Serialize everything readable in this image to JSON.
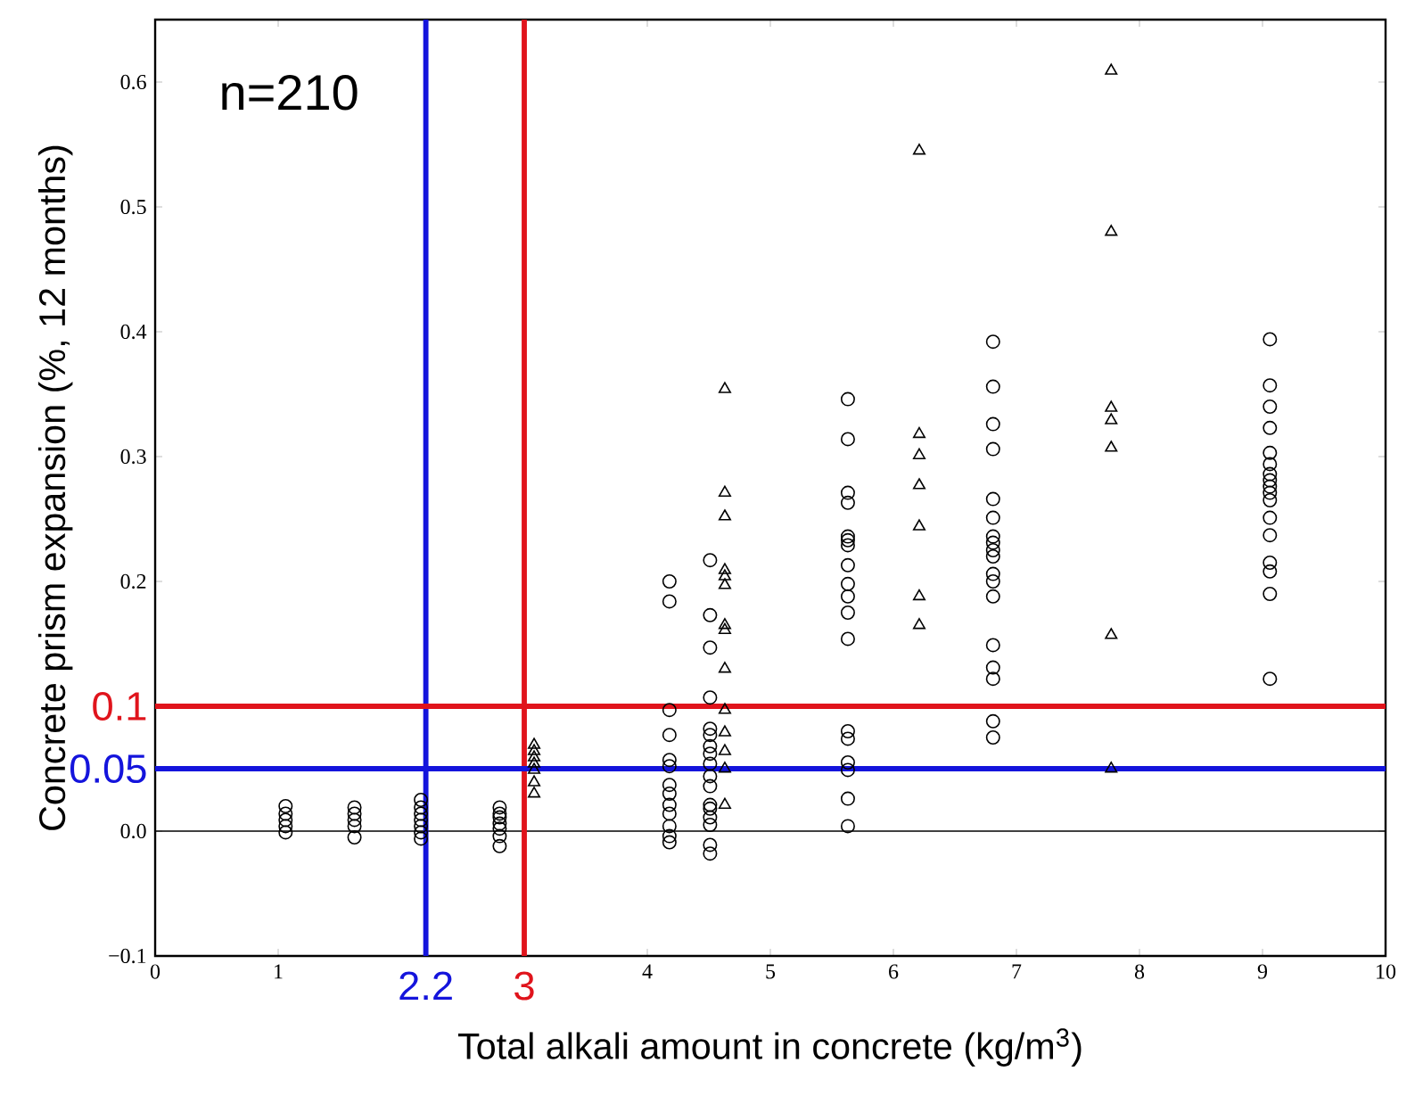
{
  "chart_data": {
    "type": "scatter",
    "xlabel": "Total alkali amount in concrete (kg/m$^{3}$)",
    "ylabel": "Concrete prism expansion (%, 12 months)",
    "annotations": [
      "n=210"
    ],
    "xlim": [
      0,
      10
    ],
    "ylim": [
      -0.1,
      0.65
    ],
    "xticks": [
      0,
      1,
      4,
      5,
      6,
      7,
      8,
      9,
      10
    ],
    "yticks": [
      {
        "value": -0.1,
        "label": "−0.1"
      },
      {
        "value": 0,
        "label": "0.0"
      },
      0.2,
      0.3,
      0.4,
      0.5,
      0.6
    ],
    "ref_lines": [
      {
        "axis": "y",
        "value": 0,
        "color": "#000000"
      },
      {
        "axis": "x",
        "value": 2.2,
        "label": "2.2",
        "color": "#1414dc"
      },
      {
        "axis": "x",
        "value": 3,
        "label": "3",
        "color": "#e0141c"
      },
      {
        "axis": "y",
        "value": 0.1,
        "label": "0.1",
        "color": "#e0141c"
      },
      {
        "axis": "y",
        "value": 0.05,
        "label": "0.05",
        "color": "#1414dc"
      }
    ],
    "series": [
      {
        "color": "#000000",
        "marker": "circle",
        "x": [
          1.06,
          1.06,
          1.06,
          1.06,
          1.06,
          1.62,
          1.62,
          1.62,
          1.62,
          1.62,
          2.16,
          2.16,
          2.16,
          2.16,
          2.16,
          2.16,
          2.16,
          2.8,
          2.8,
          2.8,
          2.8,
          2.8,
          2.8,
          2.8,
          4.18,
          4.18,
          4.18,
          4.18,
          4.18,
          4.18,
          4.18,
          4.18,
          4.18,
          4.18,
          4.18,
          4.18,
          4.18,
          4.51,
          4.51,
          4.51,
          4.51,
          4.51,
          4.51,
          4.51,
          4.51,
          4.51,
          4.51,
          4.51,
          4.51,
          4.51,
          4.51,
          4.51,
          4.51,
          4.51,
          5.63,
          5.63,
          5.63,
          5.63,
          5.63,
          5.63,
          5.63,
          5.63,
          5.63,
          5.63,
          5.63,
          5.63,
          5.63,
          5.63,
          5.63,
          5.63,
          5.63,
          5.63,
          6.81,
          6.81,
          6.81,
          6.81,
          6.81,
          6.81,
          6.81,
          6.81,
          6.81,
          6.81,
          6.81,
          6.81,
          6.81,
          6.81,
          6.81,
          6.81,
          6.81,
          6.81,
          9.06,
          9.06,
          9.06,
          9.06,
          9.06,
          9.06,
          9.06,
          9.06,
          9.06,
          9.06,
          9.06,
          9.06,
          9.06,
          9.06,
          9.06,
          9.06,
          9.06
        ],
        "values": [
          0.02,
          0.014,
          0.009,
          0.004,
          -0.001,
          0.019,
          0.014,
          0.009,
          0.004,
          -0.005,
          0.025,
          0.019,
          0.014,
          0.009,
          0.004,
          -0.001,
          -0.006,
          0.019,
          0.014,
          0.011,
          0.006,
          0.002,
          -0.004,
          -0.012,
          0.2,
          0.184,
          0.097,
          0.077,
          0.057,
          0.052,
          0.037,
          0.03,
          0.021,
          0.014,
          0.004,
          -0.004,
          -0.009,
          0.217,
          0.173,
          0.147,
          0.107,
          0.082,
          0.077,
          0.068,
          0.062,
          0.054,
          0.044,
          0.036,
          0.021,
          0.018,
          0.011,
          0.005,
          -0.011,
          -0.018,
          0.346,
          0.314,
          0.271,
          0.263,
          0.236,
          0.233,
          0.229,
          0.213,
          0.198,
          0.188,
          0.175,
          0.154,
          0.08,
          0.074,
          0.055,
          0.049,
          0.026,
          0.004,
          0.392,
          0.356,
          0.326,
          0.306,
          0.266,
          0.251,
          0.236,
          0.231,
          0.225,
          0.22,
          0.206,
          0.2,
          0.188,
          0.149,
          0.131,
          0.122,
          0.088,
          0.075,
          0.394,
          0.357,
          0.34,
          0.323,
          0.303,
          0.294,
          0.286,
          0.281,
          0.276,
          0.271,
          0.265,
          0.251,
          0.237,
          0.215,
          0.208,
          0.19,
          0.122
        ]
      },
      {
        "color": "#000000",
        "marker": "triangle",
        "x": [
          3.08,
          3.08,
          3.08,
          3.08,
          3.08,
          3.08,
          3.08,
          4.63,
          4.63,
          4.63,
          4.63,
          4.63,
          4.63,
          4.63,
          4.63,
          4.63,
          4.63,
          4.63,
          4.63,
          4.63,
          4.63,
          6.21,
          6.21,
          6.21,
          6.21,
          6.21,
          6.21,
          6.21,
          7.77,
          7.77,
          7.77,
          7.77,
          7.77,
          7.77,
          7.77
        ],
        "values": [
          0.069,
          0.064,
          0.059,
          0.054,
          0.049,
          0.039,
          0.03,
          0.354,
          0.271,
          0.252,
          0.209,
          0.204,
          0.197,
          0.165,
          0.161,
          0.13,
          0.097,
          0.079,
          0.064,
          0.05,
          0.021,
          0.545,
          0.318,
          0.301,
          0.277,
          0.244,
          0.188,
          0.165,
          0.609,
          0.48,
          0.339,
          0.329,
          0.307,
          0.157,
          0.05
        ]
      }
    ]
  }
}
